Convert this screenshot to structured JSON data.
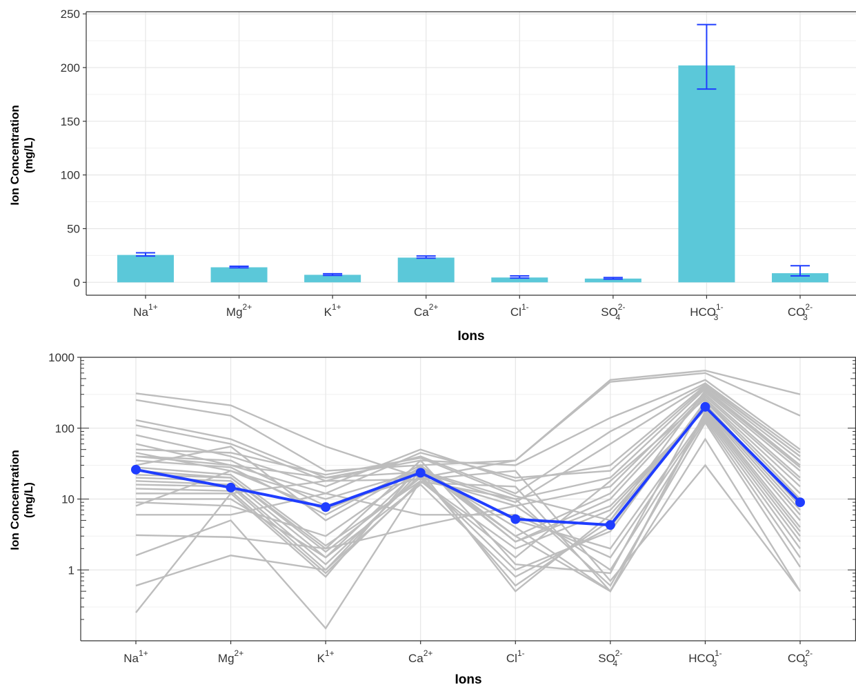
{
  "chart_data": [
    {
      "type": "bar",
      "xlabel": "Ions",
      "ylabel_lines": [
        "Ion Concentration",
        "(mg/L)"
      ],
      "ylim": [
        -12,
        252
      ],
      "yticks": [
        0,
        50,
        100,
        150,
        200,
        250
      ],
      "grid": true,
      "categories": [
        {
          "base": "Na",
          "sup": "1+",
          "sub": ""
        },
        {
          "base": "Mg",
          "sup": "2+",
          "sub": ""
        },
        {
          "base": "K",
          "sup": "1+",
          "sub": ""
        },
        {
          "base": "Ca",
          "sup": "2+",
          "sub": ""
        },
        {
          "base": "Cl",
          "sup": "1-",
          "sub": ""
        },
        {
          "base": "SO",
          "sup": "2-",
          "sub": "4"
        },
        {
          "base": "HCO",
          "sup": "1-",
          "sub": "3"
        },
        {
          "base": "CO",
          "sup": "2-",
          "sub": "3"
        }
      ],
      "values": [
        25.5,
        14.0,
        7.0,
        23.0,
        4.5,
        3.5,
        202.0,
        8.5
      ],
      "error_low": [
        24.5,
        13.5,
        6.5,
        22.5,
        4.0,
        3.0,
        180.0,
        6.0
      ],
      "error_high": [
        27.5,
        15.0,
        8.0,
        24.5,
        6.0,
        4.5,
        240.0,
        15.5
      ],
      "colors": {
        "bar": "#5bc8d9",
        "error": "#1f3dff"
      }
    },
    {
      "type": "line",
      "xlabel": "Ions",
      "ylabel_lines": [
        "Ion Concentration",
        "(mg/L)"
      ],
      "yscale": "log",
      "ylim": [
        0.1,
        1000
      ],
      "yticks": [
        1,
        10,
        100,
        1000
      ],
      "grid": true,
      "categories": [
        {
          "base": "Na",
          "sup": "1+",
          "sub": ""
        },
        {
          "base": "Mg",
          "sup": "2+",
          "sub": ""
        },
        {
          "base": "K",
          "sup": "1+",
          "sub": ""
        },
        {
          "base": "Ca",
          "sup": "2+",
          "sub": ""
        },
        {
          "base": "Cl",
          "sup": "1-",
          "sub": ""
        },
        {
          "base": "SO",
          "sup": "2-",
          "sub": "4"
        },
        {
          "base": "HCO",
          "sup": "1-",
          "sub": "3"
        },
        {
          "base": "CO",
          "sup": "2-",
          "sub": "3"
        }
      ],
      "mean_series": [
        26,
        14.5,
        7.7,
        23.5,
        5.2,
        4.3,
        200,
        9
      ],
      "samples": [
        [
          310,
          210,
          55,
          20,
          35,
          480,
          650,
          300
        ],
        [
          250,
          150,
          25,
          30,
          35,
          450,
          600,
          150
        ],
        [
          130,
          70,
          20,
          35,
          30,
          140,
          480,
          50
        ],
        [
          110,
          60,
          18,
          40,
          12,
          90,
          430,
          45
        ],
        [
          80,
          40,
          15,
          50,
          18,
          30,
          400,
          40
        ],
        [
          60,
          30,
          12,
          45,
          20,
          25,
          380,
          35
        ],
        [
          45,
          25,
          10,
          25,
          10,
          20,
          360,
          30
        ],
        [
          40,
          35,
          8,
          20,
          8,
          15,
          320,
          25
        ],
        [
          35,
          28,
          6,
          30,
          3,
          12,
          300,
          20
        ],
        [
          30,
          55,
          5,
          28,
          2.5,
          10,
          280,
          18
        ],
        [
          28,
          22,
          2.2,
          18,
          1.5,
          18,
          260,
          15
        ],
        [
          25,
          20,
          2,
          35,
          1.2,
          0.9,
          250,
          12
        ],
        [
          22,
          20,
          1.8,
          20,
          1,
          3.5,
          240,
          10
        ],
        [
          20,
          18,
          1.5,
          16,
          0.8,
          4,
          220,
          8
        ],
        [
          18,
          16,
          1.2,
          22,
          0.6,
          5,
          210,
          7
        ],
        [
          16,
          15,
          1,
          25,
          0.5,
          6,
          200,
          6
        ],
        [
          14,
          13,
          0.9,
          18,
          2,
          7,
          190,
          5
        ],
        [
          12,
          12,
          0.8,
          30,
          2.5,
          8,
          180,
          4
        ],
        [
          10,
          10,
          1.5,
          27,
          3,
          0.5,
          170,
          3.5
        ],
        [
          9,
          8,
          3,
          26,
          4,
          0.5,
          160,
          3
        ],
        [
          8,
          25,
          7,
          25,
          5,
          2,
          150,
          2.5
        ],
        [
          6,
          6,
          12,
          6,
          6,
          1.5,
          140,
          2
        ],
        [
          3.1,
          2.9,
          2,
          4.2,
          8,
          1,
          130,
          1.5
        ],
        [
          1.6,
          5,
          0.15,
          18,
          10,
          0.6,
          120,
          1.1
        ],
        [
          0.6,
          1.6,
          1,
          17,
          15,
          0.5,
          70,
          0.5
        ],
        [
          0.25,
          12,
          18,
          19,
          25,
          0.7,
          30,
          0.5
        ],
        [
          40,
          30,
          20,
          24,
          9,
          60,
          410,
          40
        ],
        [
          50,
          45,
          22,
          38,
          11,
          5,
          340,
          28
        ]
      ],
      "colors": {
        "mean": "#1f3dff",
        "samples": "#bdbdbd"
      }
    }
  ]
}
